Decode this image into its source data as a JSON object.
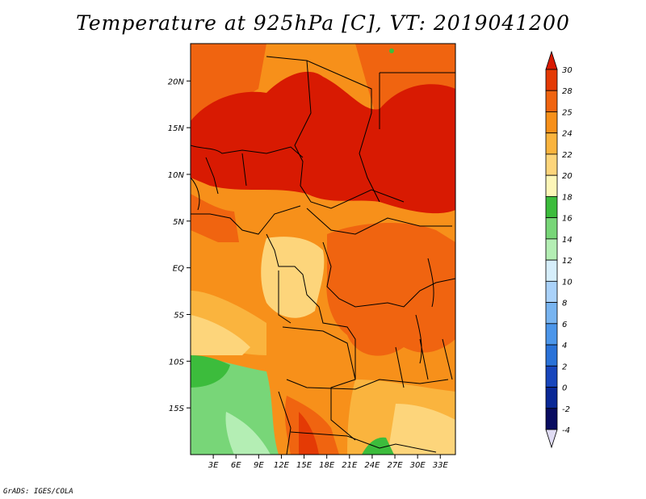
{
  "title": "Temperature at 925hPa [C], VT: 2019041200",
  "credit": "GrADS: IGES/COLA",
  "map": {
    "lon_range": [
      0,
      35
    ],
    "lat_range": [
      -20,
      24
    ],
    "lon_ticks": [
      {
        "value": 3,
        "label": "3E"
      },
      {
        "value": 6,
        "label": "6E"
      },
      {
        "value": 9,
        "label": "9E"
      },
      {
        "value": 12,
        "label": "12E"
      },
      {
        "value": 15,
        "label": "15E"
      },
      {
        "value": 18,
        "label": "18E"
      },
      {
        "value": 21,
        "label": "21E"
      },
      {
        "value": 24,
        "label": "24E"
      },
      {
        "value": 27,
        "label": "27E"
      },
      {
        "value": 30,
        "label": "30E"
      },
      {
        "value": 33,
        "label": "33E"
      }
    ],
    "lat_ticks": [
      {
        "value": 20,
        "label": "20N"
      },
      {
        "value": 15,
        "label": "15N"
      },
      {
        "value": 10,
        "label": "10N"
      },
      {
        "value": 5,
        "label": "5N"
      },
      {
        "value": 0,
        "label": "EQ"
      },
      {
        "value": -5,
        "label": "5S"
      },
      {
        "value": -10,
        "label": "10S"
      },
      {
        "value": -15,
        "label": "15S"
      }
    ]
  },
  "colorbar": {
    "levels": [
      "30",
      "28",
      "25",
      "24",
      "22",
      "20",
      "18",
      "16",
      "14",
      "12",
      "10",
      "8",
      "6",
      "4",
      "2",
      "0",
      "-2",
      "-4"
    ],
    "colors": [
      "#d81a02",
      "#e43a05",
      "#f06410",
      "#f7901a",
      "#fab43e",
      "#fdd57b",
      "#fdf6b8",
      "#3cbc3c",
      "#78d678",
      "#b4eeb4",
      "#d6eefb",
      "#aad2fa",
      "#78b4f0",
      "#4c96ea",
      "#2a72d8",
      "#1846bc",
      "#0a2896",
      "#080c60",
      "#e0dcf4"
    ]
  }
}
